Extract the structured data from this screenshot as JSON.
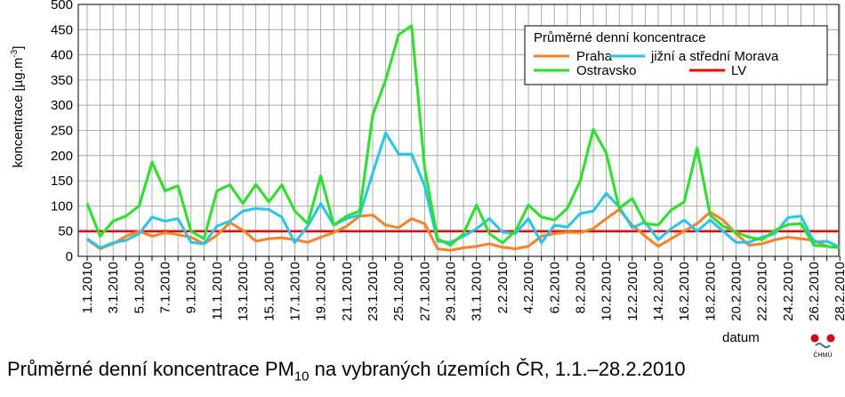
{
  "caption": {
    "before_sub": "Průměrné denní koncentrace PM",
    "sub": "10",
    "after_sub": " na vybraných územích ČR, 1.1.–28.2.2010"
  },
  "logo": {
    "text": "ČHMÚ",
    "colors": [
      "#e0001b",
      "#2a7ab8"
    ]
  },
  "chart_data": {
    "type": "line",
    "ylabel": "koncentrace [µg.m-3]",
    "ylabel_parts": {
      "main": "koncentrace [µg.m",
      "sup": "-3",
      "end": "]"
    },
    "xlabel": "datum",
    "ylim": [
      0,
      500
    ],
    "yticks": [
      0,
      50,
      100,
      150,
      200,
      250,
      300,
      350,
      400,
      450,
      500
    ],
    "grid": true,
    "legend_title": "Průměrné denní koncentrace",
    "legend_position": "top-right",
    "x": [
      "1.1.2010",
      "2.1.2010",
      "3.1.2010",
      "4.1.2010",
      "5.1.2010",
      "6.1.2010",
      "7.1.2010",
      "8.1.2010",
      "9.1.2010",
      "10.1.2010",
      "11.1.2010",
      "12.1.2010",
      "13.1.2010",
      "14.1.2010",
      "15.1.2010",
      "16.1.2010",
      "17.1.2010",
      "18.1.2010",
      "19.1.2010",
      "20.1.2010",
      "21.1.2010",
      "22.1.2010",
      "23.1.2010",
      "24.1.2010",
      "25.1.2010",
      "26.1.2010",
      "27.1.2010",
      "28.1.2010",
      "29.1.2010",
      "30.1.2010",
      "31.1.2010",
      "1.2.2010",
      "2.2.2010",
      "3.2.2010",
      "4.2.2010",
      "5.2.2010",
      "6.2.2010",
      "7.2.2010",
      "8.2.2010",
      "9.2.2010",
      "10.2.2010",
      "11.2.2010",
      "12.2.2010",
      "13.2.2010",
      "14.2.2010",
      "15.2.2010",
      "16.2.2010",
      "17.2.2010",
      "18.2.2010",
      "19.2.2010",
      "20.2.2010",
      "21.2.2010",
      "22.2.2010",
      "23.2.2010",
      "24.2.2010",
      "25.2.2010",
      "26.2.2010",
      "27.2.2010",
      "28.2.2010"
    ],
    "xtick_labels": [
      "1.1.2010",
      "3.1.2010",
      "5.1.2010",
      "7.1.2010",
      "9.1.2010",
      "11.1.2010",
      "13.1.2010",
      "15.1.2010",
      "17.1.2010",
      "19.1.2010",
      "21.1.2010",
      "23.1.2010",
      "25.1.2010",
      "27.1.2010",
      "29.1.2010",
      "31.1.2010",
      "2.2.2010",
      "4.2.2010",
      "6.2.2010",
      "8.2.2010",
      "10.2.2010",
      "12.2.2010",
      "14.2.2010",
      "16.2.2010",
      "18.2.2010",
      "20.2.2010",
      "22.2.2010",
      "24.2.2010",
      "26.2.2010",
      "28.2.2010"
    ],
    "series": [
      {
        "name": "Praha",
        "color": "#ff7f1e",
        "values": [
          33,
          15,
          25,
          40,
          50,
          40,
          47,
          43,
          38,
          25,
          42,
          67,
          52,
          30,
          35,
          37,
          33,
          28,
          38,
          47,
          60,
          80,
          82,
          62,
          57,
          75,
          65,
          15,
          12,
          17,
          20,
          25,
          18,
          15,
          20,
          40,
          45,
          48,
          47,
          55,
          75,
          93,
          62,
          40,
          20,
          35,
          50,
          65,
          88,
          72,
          45,
          22,
          25,
          33,
          38,
          35,
          32,
          20,
          17
        ]
      },
      {
        "name": "jižní a střední Morava",
        "color": "#1ec8f0",
        "values": [
          35,
          17,
          27,
          32,
          45,
          78,
          70,
          75,
          28,
          25,
          60,
          70,
          90,
          95,
          93,
          78,
          27,
          60,
          105,
          62,
          75,
          82,
          165,
          245,
          203,
          203,
          140,
          30,
          28,
          40,
          55,
          75,
          48,
          45,
          75,
          27,
          62,
          58,
          85,
          90,
          125,
          98,
          57,
          68,
          33,
          55,
          72,
          50,
          72,
          50,
          28,
          28,
          38,
          45,
          77,
          80,
          28,
          30,
          18
        ]
      },
      {
        "name": "Ostravsko",
        "color": "#22e622",
        "values": [
          105,
          40,
          70,
          80,
          100,
          187,
          130,
          140,
          50,
          35,
          130,
          142,
          105,
          143,
          108,
          142,
          90,
          65,
          160,
          62,
          80,
          90,
          280,
          350,
          440,
          458,
          175,
          35,
          22,
          45,
          102,
          45,
          27,
          50,
          102,
          78,
          72,
          95,
          150,
          252,
          205,
          95,
          115,
          65,
          62,
          92,
          108,
          215,
          82,
          60,
          48,
          38,
          33,
          52,
          63,
          65,
          22,
          20,
          17
        ]
      }
    ],
    "reference_lines": [
      {
        "name": "LV",
        "value": 50,
        "color": "#ff0000"
      }
    ]
  }
}
